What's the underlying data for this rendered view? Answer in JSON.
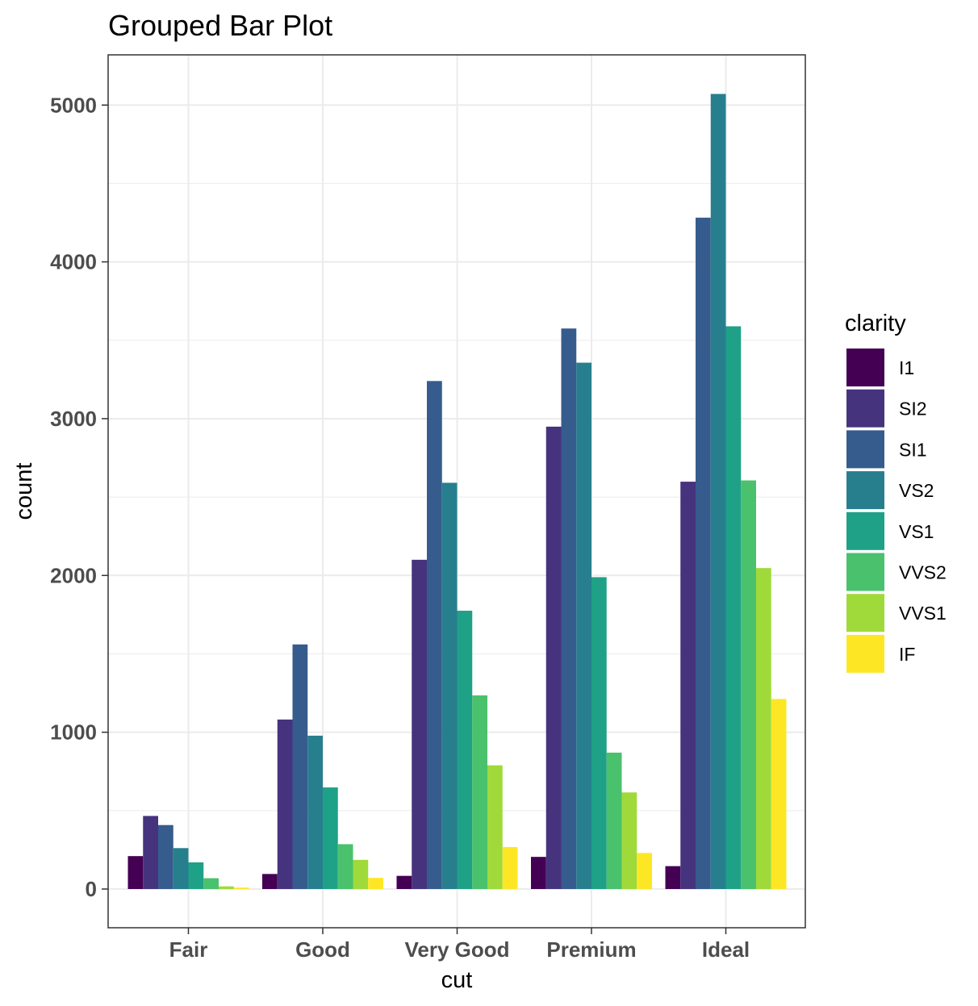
{
  "chart_data": {
    "type": "bar",
    "title": "Grouped Bar Plot",
    "xlabel": "cut",
    "ylabel": "count",
    "categories": [
      "Fair",
      "Good",
      "Very Good",
      "Premium",
      "Ideal"
    ],
    "yticks": [
      0,
      1000,
      2000,
      3000,
      4000,
      5000
    ],
    "ylim": [
      -250,
      5320
    ],
    "grid": true,
    "legend": {
      "title": "clarity",
      "position": "right"
    },
    "series": [
      {
        "name": "I1",
        "color": "#440154",
        "values": [
          210,
          96,
          84,
          205,
          146
        ]
      },
      {
        "name": "SI2",
        "color": "#46337E",
        "values": [
          466,
          1081,
          2100,
          2949,
          2598
        ]
      },
      {
        "name": "SI1",
        "color": "#365C8D",
        "values": [
          408,
          1560,
          3240,
          3575,
          4282
        ]
      },
      {
        "name": "VS2",
        "color": "#277F8E",
        "values": [
          261,
          978,
          2591,
          3357,
          5071
        ]
      },
      {
        "name": "VS1",
        "color": "#1FA187",
        "values": [
          170,
          648,
          1775,
          1989,
          3589
        ]
      },
      {
        "name": "VVS2",
        "color": "#4AC16D",
        "values": [
          69,
          286,
          1235,
          870,
          2606
        ]
      },
      {
        "name": "VVS1",
        "color": "#9FDA3A",
        "values": [
          17,
          186,
          789,
          616,
          2047
        ]
      },
      {
        "name": "IF",
        "color": "#FDE725",
        "values": [
          9,
          71,
          268,
          230,
          1212
        ]
      }
    ]
  }
}
